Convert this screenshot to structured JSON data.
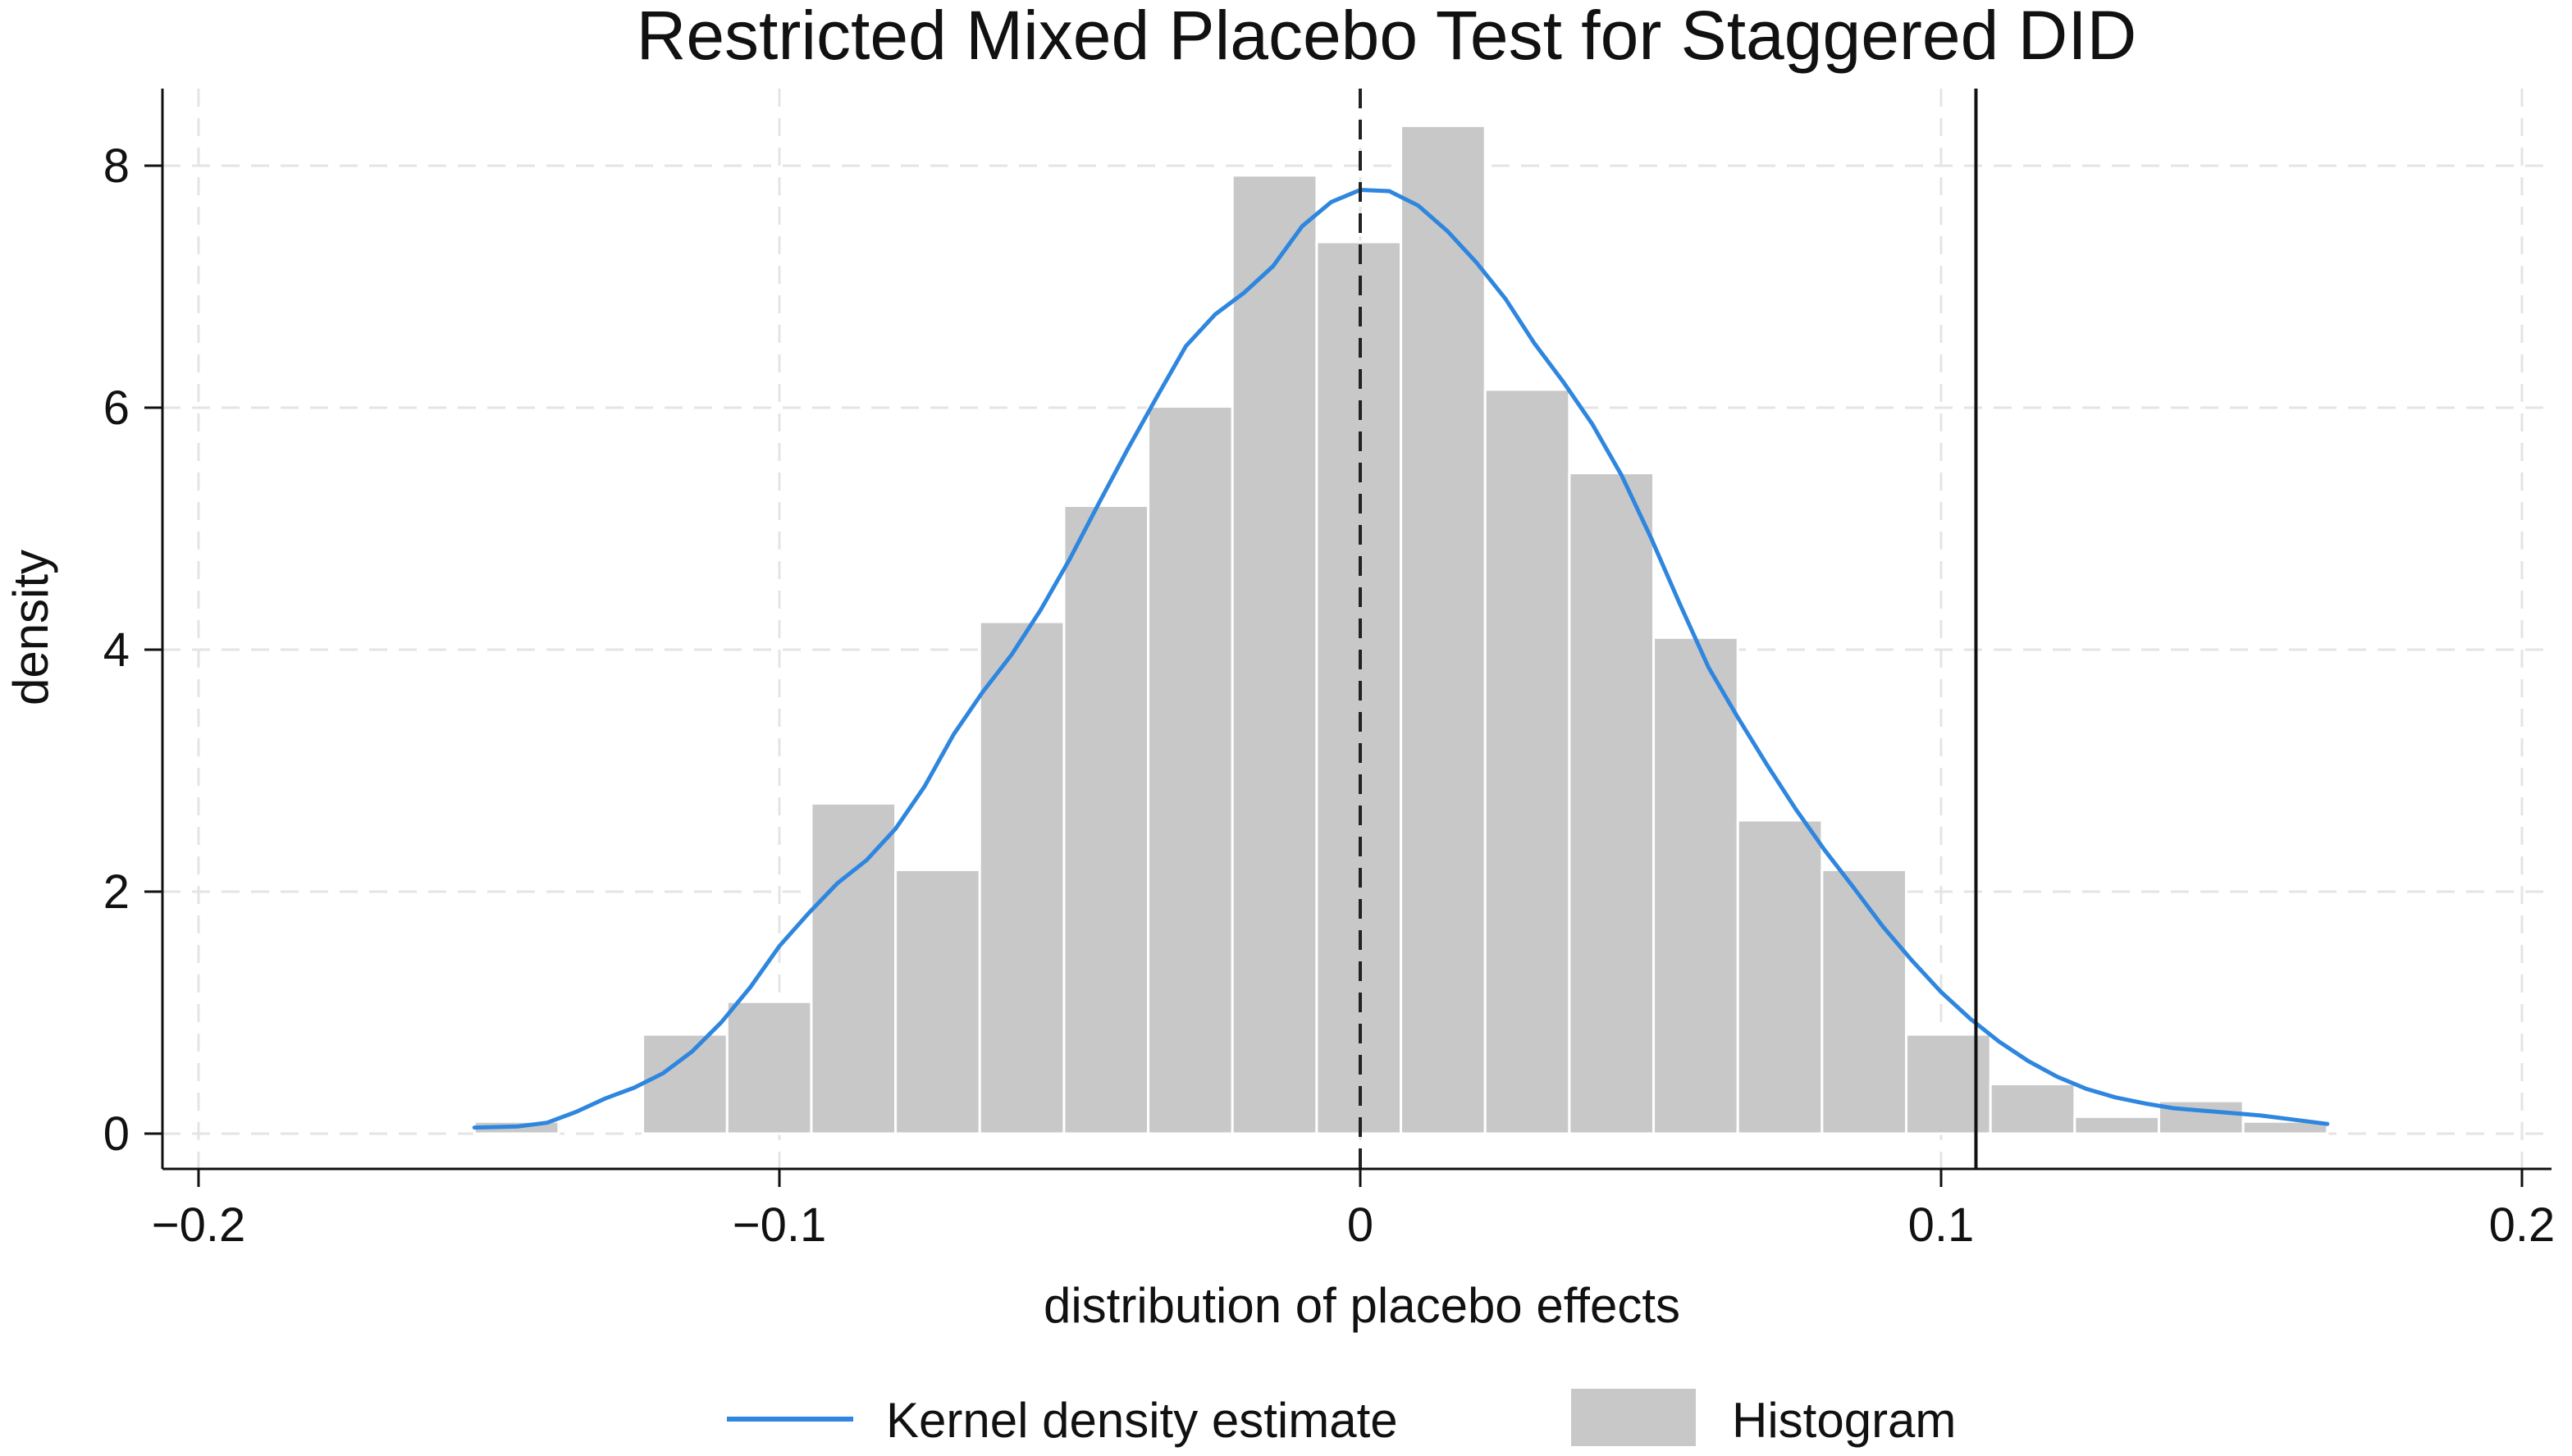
{
  "chart_data": {
    "type": "histogram",
    "title": "Restricted Mixed Placebo Test for Staggered DID",
    "xlabel": "distribution of placebo effects",
    "ylabel": "density",
    "xlim": [
      -0.2,
      0.2
    ],
    "ylim": [
      0,
      8.6
    ],
    "xticks": [
      -0.2,
      -0.1,
      0,
      0.1,
      0.2
    ],
    "xtick_labels": [
      "−0.2",
      "−0.1",
      "0",
      "0.1",
      "0.2"
    ],
    "yticks": [
      0,
      2,
      4,
      6,
      8
    ],
    "ytick_labels": [
      "0",
      "2",
      "4",
      "6",
      "8"
    ],
    "grid": true,
    "legend_position": "bottom",
    "legend": [
      {
        "label": "Kernel density estimate",
        "kind": "line",
        "color": "#2e86de"
      },
      {
        "label": "Histogram",
        "kind": "bar",
        "color": "#c8c8c8"
      }
    ],
    "histogram": {
      "color": "#c8c8c8",
      "bins": [
        {
          "x0": -0.1525,
          "x1": -0.138,
          "value": 0.1
        },
        {
          "x0": -0.1235,
          "x1": -0.109,
          "value": 0.82
        },
        {
          "x0": -0.109,
          "x1": -0.0945,
          "value": 1.09
        },
        {
          "x0": -0.0945,
          "x1": -0.08,
          "value": 2.73
        },
        {
          "x0": -0.08,
          "x1": -0.0655,
          "value": 2.18
        },
        {
          "x0": -0.0655,
          "x1": -0.051,
          "value": 4.23
        },
        {
          "x0": -0.051,
          "x1": -0.0365,
          "value": 5.19
        },
        {
          "x0": -0.0365,
          "x1": -0.022,
          "value": 6.01
        },
        {
          "x0": -0.022,
          "x1": -0.0075,
          "value": 7.92
        },
        {
          "x0": -0.0075,
          "x1": 0.007,
          "value": 7.37
        },
        {
          "x0": 0.007,
          "x1": 0.0215,
          "value": 8.33
        },
        {
          "x0": 0.0215,
          "x1": 0.036,
          "value": 6.15
        },
        {
          "x0": 0.036,
          "x1": 0.0505,
          "value": 5.46
        },
        {
          "x0": 0.0505,
          "x1": 0.065,
          "value": 4.1
        },
        {
          "x0": 0.065,
          "x1": 0.0795,
          "value": 2.59
        },
        {
          "x0": 0.0795,
          "x1": 0.094,
          "value": 2.18
        },
        {
          "x0": 0.094,
          "x1": 0.1085,
          "value": 0.82
        },
        {
          "x0": 0.1085,
          "x1": 0.123,
          "value": 0.41
        },
        {
          "x0": 0.123,
          "x1": 0.1375,
          "value": 0.14
        },
        {
          "x0": 0.1375,
          "x1": 0.152,
          "value": 0.27
        },
        {
          "x0": 0.152,
          "x1": 0.1665,
          "value": 0.1
        }
      ]
    },
    "kde": {
      "color": "#2e86de",
      "points": [
        [
          -0.1525,
          0.05
        ],
        [
          -0.145,
          0.06
        ],
        [
          -0.14,
          0.09
        ],
        [
          -0.135,
          0.18
        ],
        [
          -0.13,
          0.29
        ],
        [
          -0.125,
          0.38
        ],
        [
          -0.12,
          0.5
        ],
        [
          -0.115,
          0.68
        ],
        [
          -0.11,
          0.92
        ],
        [
          -0.105,
          1.21
        ],
        [
          -0.1,
          1.55
        ],
        [
          -0.095,
          1.82
        ],
        [
          -0.09,
          2.07
        ],
        [
          -0.085,
          2.26
        ],
        [
          -0.08,
          2.52
        ],
        [
          -0.075,
          2.87
        ],
        [
          -0.07,
          3.3
        ],
        [
          -0.065,
          3.65
        ],
        [
          -0.06,
          3.96
        ],
        [
          -0.055,
          4.33
        ],
        [
          -0.05,
          4.75
        ],
        [
          -0.045,
          5.21
        ],
        [
          -0.04,
          5.66
        ],
        [
          -0.035,
          6.09
        ],
        [
          -0.03,
          6.51
        ],
        [
          -0.025,
          6.77
        ],
        [
          -0.02,
          6.95
        ],
        [
          -0.015,
          7.17
        ],
        [
          -0.01,
          7.5
        ],
        [
          -0.005,
          7.7
        ],
        [
          0,
          7.8
        ],
        [
          0.005,
          7.79
        ],
        [
          0.01,
          7.67
        ],
        [
          0.015,
          7.46
        ],
        [
          0.02,
          7.2
        ],
        [
          0.025,
          6.9
        ],
        [
          0.03,
          6.53
        ],
        [
          0.035,
          6.21
        ],
        [
          0.04,
          5.86
        ],
        [
          0.045,
          5.44
        ],
        [
          0.05,
          4.93
        ],
        [
          0.055,
          4.38
        ],
        [
          0.06,
          3.85
        ],
        [
          0.065,
          3.44
        ],
        [
          0.07,
          3.05
        ],
        [
          0.075,
          2.68
        ],
        [
          0.08,
          2.34
        ],
        [
          0.085,
          2.03
        ],
        [
          0.09,
          1.71
        ],
        [
          0.095,
          1.43
        ],
        [
          0.1,
          1.17
        ],
        [
          0.105,
          0.95
        ],
        [
          0.11,
          0.76
        ],
        [
          0.115,
          0.6
        ],
        [
          0.12,
          0.47
        ],
        [
          0.125,
          0.37
        ],
        [
          0.13,
          0.3
        ],
        [
          0.135,
          0.25
        ],
        [
          0.14,
          0.21
        ],
        [
          0.145,
          0.19
        ],
        [
          0.15,
          0.17
        ],
        [
          0.155,
          0.15
        ],
        [
          0.16,
          0.12
        ],
        [
          0.1665,
          0.08
        ]
      ]
    },
    "reference_lines": [
      {
        "name": "zero-reference-line",
        "x": 0,
        "style": "dashed",
        "color": "#222222"
      },
      {
        "name": "actual-estimate-line",
        "x": 0.106,
        "style": "solid",
        "color": "#111111"
      }
    ]
  }
}
